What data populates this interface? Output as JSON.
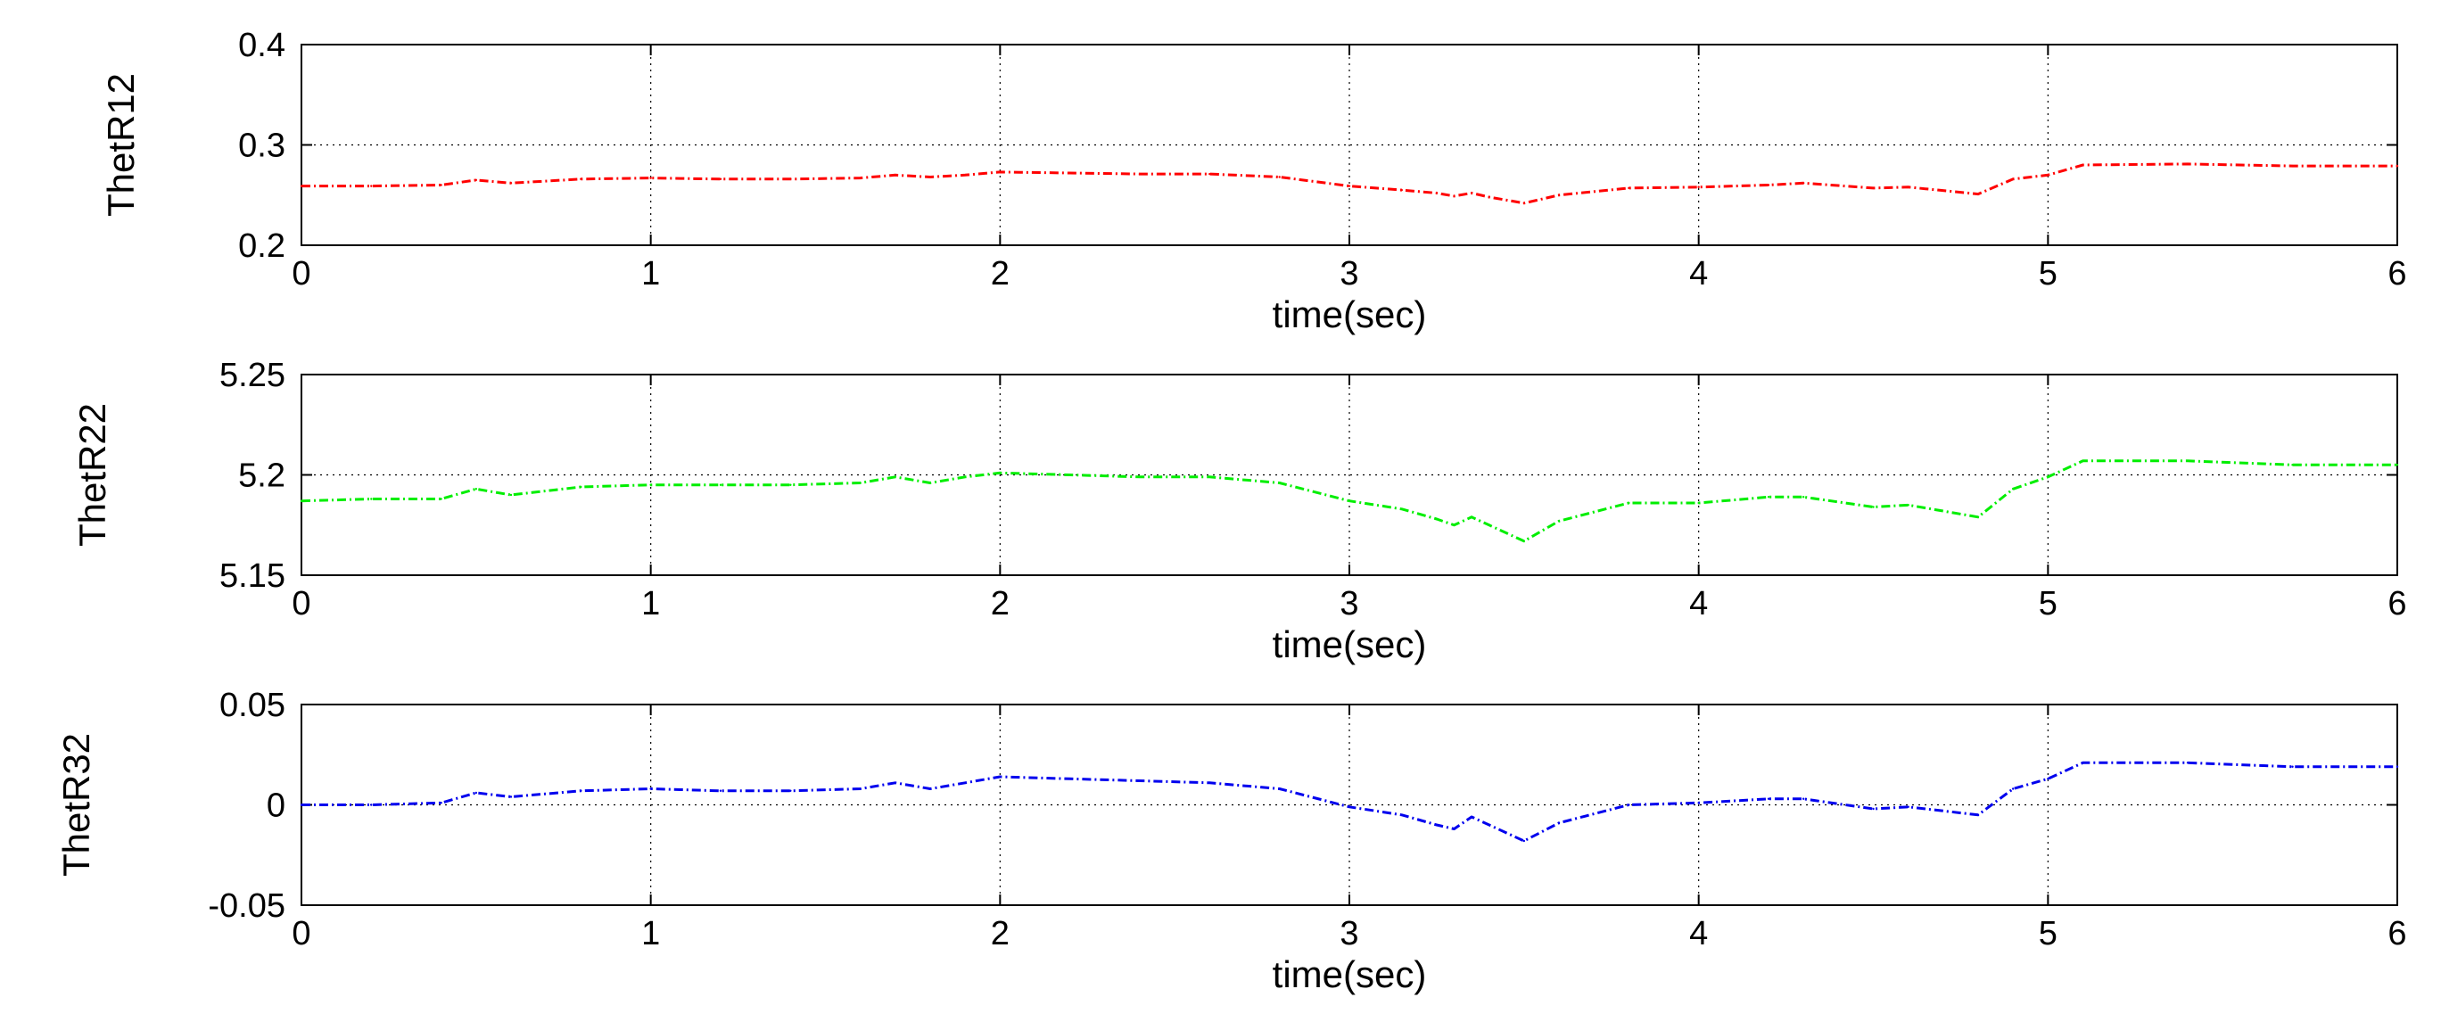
{
  "chart_data": [
    {
      "type": "line",
      "title": "",
      "xlabel": "time(sec)",
      "ylabel": "ThetR12",
      "xlim": [
        0,
        6
      ],
      "ylim": [
        0.2,
        0.4
      ],
      "xticks": [
        "0",
        "1",
        "2",
        "3",
        "4",
        "5",
        "6"
      ],
      "yticks": [
        "0.2",
        "0.3",
        "0.4"
      ],
      "grid": true,
      "line_style": "dash-dot",
      "series": [
        {
          "color": "#ff0000",
          "x": [
            0,
            0.2,
            0.4,
            0.5,
            0.6,
            0.8,
            1.0,
            1.2,
            1.4,
            1.6,
            1.7,
            1.8,
            1.9,
            2.0,
            2.2,
            2.4,
            2.6,
            2.8,
            3.0,
            3.15,
            3.25,
            3.3,
            3.35,
            3.4,
            3.5,
            3.6,
            3.8,
            4.0,
            4.2,
            4.3,
            4.5,
            4.6,
            4.8,
            4.9,
            5.0,
            5.1,
            5.4,
            5.7,
            6.0
          ],
          "y": [
            0.259,
            0.259,
            0.26,
            0.265,
            0.262,
            0.266,
            0.267,
            0.266,
            0.266,
            0.267,
            0.27,
            0.268,
            0.27,
            0.273,
            0.272,
            0.271,
            0.271,
            0.268,
            0.259,
            0.255,
            0.252,
            0.249,
            0.252,
            0.248,
            0.242,
            0.25,
            0.257,
            0.258,
            0.26,
            0.262,
            0.257,
            0.258,
            0.251,
            0.266,
            0.27,
            0.28,
            0.281,
            0.279,
            0.279
          ]
        }
      ]
    },
    {
      "type": "line",
      "title": "",
      "xlabel": "time(sec)",
      "ylabel": "ThetR22",
      "xlim": [
        0,
        6
      ],
      "ylim": [
        5.15,
        5.25
      ],
      "xticks": [
        "0",
        "1",
        "2",
        "3",
        "4",
        "5",
        "6"
      ],
      "yticks": [
        "5.15",
        "5.2",
        "5.25"
      ],
      "grid": true,
      "line_style": "dash-dot",
      "series": [
        {
          "color": "#00ee00",
          "x": [
            0,
            0.2,
            0.4,
            0.5,
            0.6,
            0.8,
            1.0,
            1.2,
            1.4,
            1.6,
            1.7,
            1.8,
            1.9,
            2.0,
            2.2,
            2.4,
            2.6,
            2.8,
            3.0,
            3.15,
            3.25,
            3.3,
            3.35,
            3.4,
            3.5,
            3.6,
            3.8,
            4.0,
            4.2,
            4.3,
            4.5,
            4.6,
            4.8,
            4.9,
            5.0,
            5.1,
            5.4,
            5.7,
            6.0
          ],
          "y": [
            5.187,
            5.188,
            5.188,
            5.193,
            5.19,
            5.194,
            5.195,
            5.195,
            5.195,
            5.196,
            5.199,
            5.196,
            5.199,
            5.201,
            5.2,
            5.199,
            5.199,
            5.196,
            5.187,
            5.183,
            5.178,
            5.175,
            5.179,
            5.175,
            5.167,
            5.177,
            5.186,
            5.186,
            5.189,
            5.189,
            5.184,
            5.185,
            5.179,
            5.193,
            5.199,
            5.207,
            5.207,
            5.205,
            5.205
          ]
        }
      ]
    },
    {
      "type": "line",
      "title": "",
      "xlabel": "time(sec)",
      "ylabel": "ThetR32",
      "xlim": [
        0,
        6
      ],
      "ylim": [
        -0.05,
        0.05
      ],
      "xticks": [
        "0",
        "1",
        "2",
        "3",
        "4",
        "5",
        "6"
      ],
      "yticks": [
        "-0.05",
        "0",
        "0.05"
      ],
      "grid": true,
      "line_style": "dash-dot",
      "series": [
        {
          "color": "#0000ee",
          "x": [
            0,
            0.2,
            0.4,
            0.5,
            0.6,
            0.8,
            1.0,
            1.2,
            1.4,
            1.6,
            1.7,
            1.8,
            1.9,
            2.0,
            2.2,
            2.4,
            2.6,
            2.8,
            3.0,
            3.15,
            3.25,
            3.3,
            3.35,
            3.4,
            3.5,
            3.6,
            3.8,
            4.0,
            4.2,
            4.3,
            4.5,
            4.6,
            4.8,
            4.9,
            5.0,
            5.1,
            5.4,
            5.7,
            6.0
          ],
          "y": [
            0.0,
            0.0,
            0.001,
            0.006,
            0.004,
            0.007,
            0.008,
            0.007,
            0.007,
            0.008,
            0.011,
            0.008,
            0.011,
            0.014,
            0.013,
            0.012,
            0.011,
            0.008,
            -0.001,
            -0.005,
            -0.01,
            -0.012,
            -0.006,
            -0.01,
            -0.018,
            -0.009,
            0.0,
            0.001,
            0.003,
            0.003,
            -0.002,
            -0.001,
            -0.005,
            0.008,
            0.013,
            0.021,
            0.021,
            0.019,
            0.019
          ]
        }
      ]
    }
  ]
}
